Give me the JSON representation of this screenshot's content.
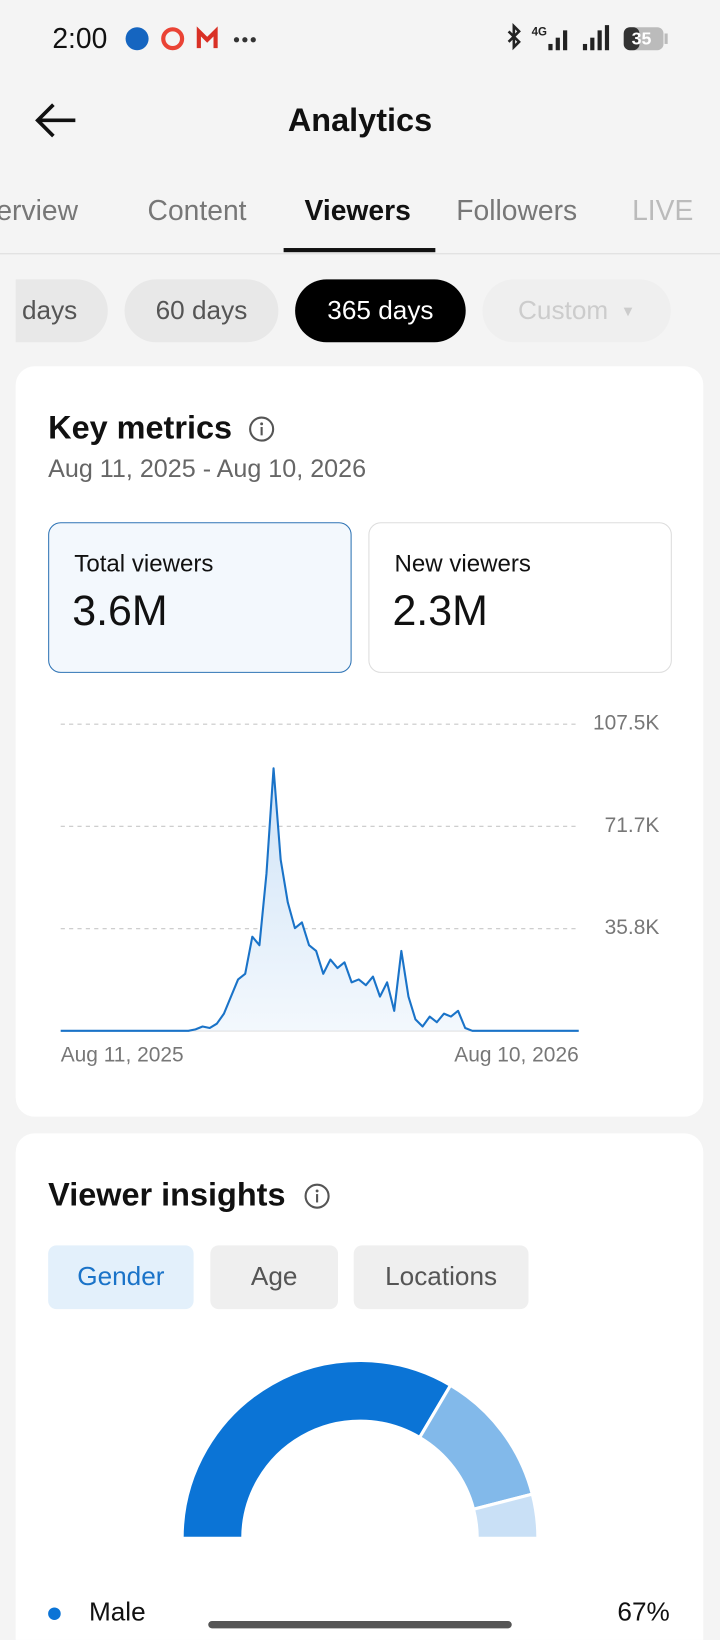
{
  "status_bar": {
    "time": "2:00",
    "network": "4G",
    "battery": "35"
  },
  "header": {
    "title": "Analytics"
  },
  "tabs": [
    "Overview",
    "Content",
    "Viewers",
    "Followers",
    "LIVE"
  ],
  "periods": [
    "days",
    "60 days",
    "365 days",
    "Custom"
  ],
  "key_metrics": {
    "title": "Key metrics",
    "date_range": "Aug 11, 2025 - Aug 10, 2026",
    "cards": [
      {
        "label": "Total viewers",
        "value": "3.6M"
      },
      {
        "label": "New viewers",
        "value": "2.3M"
      }
    ]
  },
  "viewer_insights": {
    "title": "Viewer insights",
    "tabs": [
      "Gender",
      "Age",
      "Locations"
    ]
  },
  "chart_data": [
    {
      "type": "line",
      "color": "#1a73c8",
      "grid": true,
      "categories": [
        "Aug 11, 2025",
        null,
        null,
        null,
        null,
        null,
        null,
        null,
        null,
        null,
        null,
        null,
        null,
        null,
        null,
        null,
        null,
        null,
        null,
        null,
        null,
        null,
        null,
        null,
        null,
        null,
        null,
        null,
        null,
        null,
        null,
        null,
        null,
        null,
        null,
        null,
        null,
        null,
        null,
        null,
        null,
        null,
        null,
        null,
        null,
        null,
        null,
        null,
        null,
        null,
        null,
        null,
        null,
        null,
        null,
        null,
        null,
        null,
        null,
        null,
        null,
        null,
        null,
        null,
        null,
        null,
        null,
        null,
        null,
        null,
        null,
        null,
        null,
        "Aug 10, 2026"
      ],
      "values": [
        0,
        0,
        0,
        0,
        0,
        0,
        0,
        0,
        0,
        0,
        0,
        0,
        0,
        0,
        0,
        0,
        0,
        0,
        0,
        500,
        1500,
        1000,
        2500,
        6000,
        12000,
        18000,
        20000,
        33000,
        30000,
        55000,
        92000,
        60000,
        45000,
        36000,
        38000,
        30000,
        28000,
        20000,
        25000,
        22000,
        24000,
        17000,
        18000,
        16000,
        19000,
        12000,
        17000,
        7000,
        28000,
        12000,
        4000,
        1500,
        5000,
        3000,
        6000,
        5000,
        7000,
        1000,
        0,
        0,
        0,
        0,
        0,
        0,
        0,
        0,
        0,
        0,
        0,
        0,
        0,
        0,
        0,
        0
      ],
      "ylim": [
        0,
        107500
      ],
      "yticks": [
        {
          "value": 35800,
          "label": "35.8K"
        },
        {
          "value": 71700,
          "label": "71.7K"
        },
        {
          "value": 107500,
          "label": "107.5K"
        }
      ]
    },
    {
      "type": "pie",
      "categories": [
        "Male",
        null,
        null
      ],
      "values": [
        67,
        25,
        8
      ],
      "value_labels": [
        "67%",
        null,
        null
      ],
      "colors": [
        "#0b74d6",
        "#82b9ea",
        "#c9e0f6"
      ]
    }
  ]
}
